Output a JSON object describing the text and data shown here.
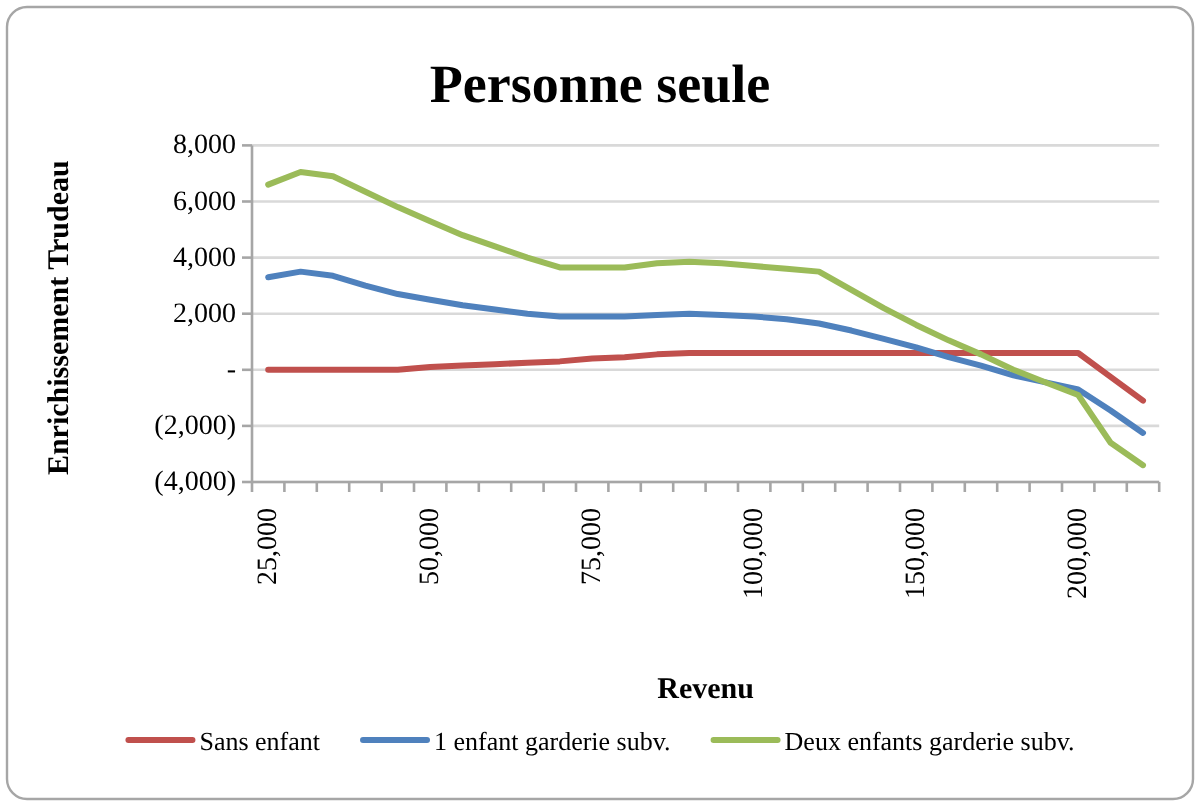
{
  "chart_data": {
    "type": "line",
    "title": "Personne seule",
    "xlabel": "Revenu",
    "ylabel": "Enrichissement Trudeau",
    "categories": [
      "25,000",
      null,
      null,
      null,
      null,
      "50,000",
      null,
      null,
      null,
      null,
      "75,000",
      null,
      null,
      null,
      null,
      "100,000",
      null,
      null,
      null,
      null,
      "150,000",
      null,
      null,
      null,
      null,
      "200,000",
      null,
      null
    ],
    "series": [
      {
        "name": "Sans enfant",
        "color": "#c0504d",
        "values": [
          0,
          0,
          0,
          0,
          0,
          100,
          150,
          200,
          250,
          300,
          400,
          450,
          550,
          600,
          600,
          600,
          600,
          600,
          600,
          600,
          600,
          600,
          600,
          600,
          600,
          600,
          -250,
          -1100
        ]
      },
      {
        "name": "1 enfant garderie subv.",
        "color": "#4f81bd",
        "values": [
          3300,
          3500,
          3350,
          3000,
          2700,
          2500,
          2300,
          2150,
          2000,
          1900,
          1900,
          1900,
          1950,
          2000,
          1950,
          1900,
          1800,
          1650,
          1400,
          1100,
          800,
          450,
          150,
          -200,
          -450,
          -700,
          -1450,
          -2250
        ]
      },
      {
        "name": "Deux enfants garderie subv.",
        "color": "#9bbb59",
        "values": [
          6600,
          7050,
          6900,
          6350,
          5800,
          5300,
          4800,
          4400,
          4000,
          3650,
          3650,
          3650,
          3800,
          3850,
          3800,
          3700,
          3600,
          3500,
          2850,
          2200,
          1600,
          1050,
          550,
          0,
          -450,
          -900,
          -2600,
          -3400
        ]
      }
    ],
    "ylim": [
      -4000,
      8000
    ],
    "yticks": [
      {
        "value": -4000,
        "label": "(4,000)"
      },
      {
        "value": -2000,
        "label": "(2,000)"
      },
      {
        "value": 0,
        "label": "-"
      },
      {
        "value": 2000,
        "label": "2,000"
      },
      {
        "value": 4000,
        "label": "4,000"
      },
      {
        "value": 6000,
        "label": "6,000"
      },
      {
        "value": 8000,
        "label": "8,000"
      }
    ],
    "grid": "y",
    "legend": "bottom"
  }
}
